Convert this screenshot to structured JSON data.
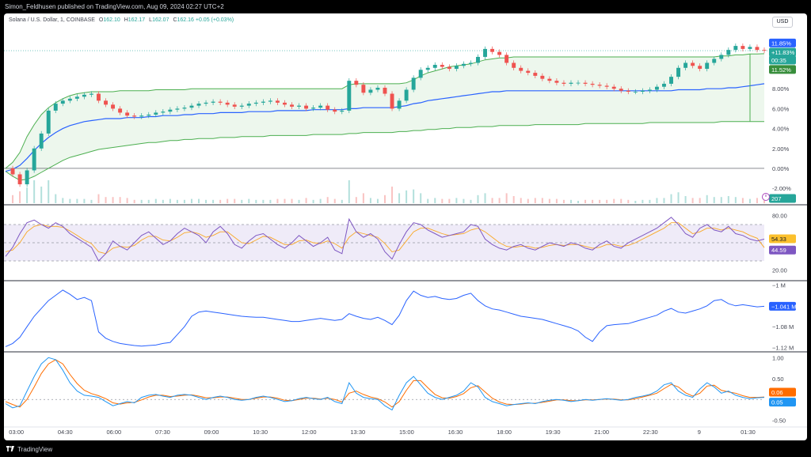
{
  "header": {
    "publisher_line": "Simon_Feldhusen published on TradingView.com, Aug 09, 2024 02:27 UTC+2"
  },
  "legend": {
    "symbol": "Solana / U.S. Dollar, 1, COINBASE",
    "o_label": "O",
    "o_value": "162.10",
    "h_label": "H",
    "h_value": "162.17",
    "l_label": "L",
    "l_value": "162.07",
    "c_label": "C",
    "c_value": "162.16",
    "change": "+0.05 (+0.03%)"
  },
  "currency_button": "USD",
  "footer": {
    "logo": "TradingView",
    "logo_icon": "tradingview-logo-icon"
  },
  "colors": {
    "band_green": "#4caf50",
    "band_fill": "#e8f5e9",
    "vwap_blue": "#2962ff",
    "up_candle": "#26a69a",
    "down_candle": "#ef5350",
    "rsi_purple": "#7e57c2",
    "rsi_ma_yellow": "#f9a825",
    "macd_blue": "#2196f3",
    "macd_orange": "#ff6d00",
    "dashed": "#9598a1"
  },
  "chart_data": [
    {
      "type": "line",
      "name": "price_pane",
      "ylim": [
        -3.5,
        13.5
      ],
      "y_unit": "percent",
      "ticks": [
        "8.00%",
        "6.00%",
        "4.00%",
        "2.00%",
        "0.00%",
        "-2.00%"
      ],
      "tick_values": [
        8,
        6,
        4,
        2,
        0,
        -2
      ],
      "x_ticks": [
        "03:00",
        "04:30",
        "06:00",
        "07:30",
        "09:00",
        "10:30",
        "12:00",
        "13:30",
        "15:00",
        "16:30",
        "18:00",
        "19:30",
        "21:00",
        "22:30",
        "9",
        "01:30"
      ],
      "x_tick_index": [
        2,
        11,
        20,
        29,
        38,
        47,
        56,
        65,
        74,
        83,
        92,
        101,
        110,
        119,
        128,
        137
      ],
      "labels": {
        "high_badge": "11.85%",
        "last_badge": "+11.83%",
        "countdown": "00:35",
        "band_badge": "11.52%",
        "volume_badge": "207"
      },
      "close": [
        0.0,
        -0.6,
        -1.6,
        -0.2,
        2.0,
        3.5,
        5.8,
        6.5,
        6.8,
        7.0,
        7.2,
        7.4,
        7.5,
        6.8,
        6.4,
        6.0,
        5.6,
        5.3,
        5.2,
        5.3,
        5.4,
        5.6,
        5.7,
        5.9,
        6.0,
        6.1,
        6.3,
        6.5,
        6.6,
        6.7,
        6.6,
        6.4,
        6.2,
        6.3,
        6.5,
        6.6,
        6.7,
        6.8,
        6.6,
        6.4,
        6.2,
        6.3,
        6.0,
        6.1,
        6.3,
        5.9,
        5.7,
        5.8,
        8.8,
        8.4,
        7.6,
        7.9,
        8.1,
        7.5,
        6.0,
        6.8,
        7.9,
        9.1,
        9.9,
        10.1,
        10.4,
        10.2,
        10.0,
        10.3,
        10.5,
        10.6,
        11.2,
        12.0,
        11.7,
        11.4,
        10.6,
        10.1,
        9.8,
        9.6,
        9.3,
        9.0,
        8.8,
        8.6,
        8.5,
        8.6,
        8.6,
        8.5,
        8.4,
        8.3,
        8.2,
        8.0,
        7.8,
        7.7,
        7.7,
        7.8,
        7.9,
        8.2,
        8.5,
        9.2,
        10.1,
        10.6,
        10.3,
        10.0,
        10.6,
        11.0,
        11.4,
        11.9,
        12.3,
        12.0,
        12.2,
        11.9,
        11.83
      ],
      "vwap": [
        -0.3,
        -0.1,
        0.3,
        1.0,
        1.8,
        2.5,
        3.1,
        3.6,
        4.0,
        4.3,
        4.5,
        4.7,
        4.8,
        4.9,
        5.0,
        5.0,
        5.0,
        5.1,
        5.1,
        5.1,
        5.2,
        5.2,
        5.3,
        5.3,
        5.3,
        5.4,
        5.4,
        5.5,
        5.5,
        5.5,
        5.6,
        5.6,
        5.6,
        5.6,
        5.7,
        5.7,
        5.7,
        5.7,
        5.8,
        5.8,
        5.8,
        5.8,
        5.8,
        5.9,
        5.9,
        5.9,
        5.9,
        5.9,
        6.0,
        6.0,
        6.1,
        6.1,
        6.1,
        6.1,
        6.1,
        6.2,
        6.3,
        6.5,
        6.6,
        6.8,
        6.9,
        7.0,
        7.1,
        7.2,
        7.3,
        7.4,
        7.5,
        7.6,
        7.7,
        7.7,
        7.8,
        7.8,
        7.8,
        7.8,
        7.8,
        7.8,
        7.8,
        7.8,
        7.8,
        7.8,
        7.8,
        7.8,
        7.8,
        7.8,
        7.8,
        7.8,
        7.8,
        7.8,
        7.8,
        7.8,
        7.8,
        7.8,
        7.8,
        7.8,
        7.9,
        7.9,
        7.9,
        7.9,
        8.0,
        8.0,
        8.0,
        8.1,
        8.1,
        8.2,
        8.3,
        8.4,
        8.5
      ],
      "band_upper": [
        0.0,
        0.6,
        1.6,
        3.2,
        4.4,
        5.4,
        6.1,
        6.6,
        7.0,
        7.3,
        7.5,
        7.6,
        7.7,
        7.7,
        7.7,
        7.7,
        7.8,
        7.8,
        7.8,
        7.8,
        7.8,
        7.9,
        7.9,
        7.9,
        7.9,
        7.9,
        8.0,
        8.0,
        8.0,
        8.0,
        8.0,
        8.0,
        8.0,
        8.0,
        8.0,
        8.0,
        8.0,
        8.0,
        8.0,
        8.0,
        8.0,
        8.0,
        8.0,
        8.0,
        8.0,
        8.0,
        8.0,
        8.0,
        8.4,
        8.5,
        8.5,
        8.5,
        8.5,
        8.5,
        8.5,
        8.5,
        8.6,
        8.9,
        9.3,
        9.6,
        9.8,
        10.0,
        10.2,
        10.3,
        10.4,
        10.5,
        10.7,
        10.9,
        11.0,
        11.1,
        11.1,
        11.2,
        11.2,
        11.2,
        11.2,
        11.2,
        11.2,
        11.2,
        11.2,
        11.2,
        11.2,
        11.2,
        11.2,
        11.2,
        11.2,
        11.2,
        11.2,
        11.2,
        11.2,
        11.2,
        11.2,
        11.2,
        11.2,
        11.2,
        11.2,
        11.2,
        11.2,
        11.2,
        11.2,
        11.2,
        11.3,
        11.3,
        11.4,
        11.4,
        11.5,
        11.5,
        11.52
      ],
      "band_lower": [
        -0.3,
        -0.8,
        -1.2,
        -1.1,
        -0.8,
        -0.4,
        0.0,
        0.4,
        0.8,
        1.1,
        1.3,
        1.5,
        1.7,
        1.9,
        2.0,
        2.1,
        2.2,
        2.3,
        2.4,
        2.5,
        2.6,
        2.6,
        2.7,
        2.8,
        2.8,
        2.9,
        2.9,
        3.0,
        3.0,
        3.0,
        3.1,
        3.1,
        3.1,
        3.2,
        3.2,
        3.2,
        3.2,
        3.3,
        3.3,
        3.3,
        3.3,
        3.3,
        3.3,
        3.4,
        3.4,
        3.4,
        3.4,
        3.4,
        3.5,
        3.5,
        3.6,
        3.6,
        3.6,
        3.6,
        3.6,
        3.7,
        3.7,
        3.8,
        3.8,
        3.9,
        3.9,
        4.0,
        4.0,
        4.1,
        4.1,
        4.1,
        4.2,
        4.2,
        4.2,
        4.3,
        4.3,
        4.3,
        4.3,
        4.3,
        4.4,
        4.4,
        4.4,
        4.4,
        4.4,
        4.4,
        4.4,
        4.5,
        4.5,
        4.5,
        4.5,
        4.5,
        4.5,
        4.5,
        4.5,
        4.5,
        4.6,
        4.6,
        4.6,
        4.6,
        4.6,
        4.6,
        4.6,
        4.6,
        4.6,
        4.6,
        4.7,
        4.7,
        4.7,
        4.7,
        4.7,
        4.7,
        4.7
      ]
    },
    {
      "type": "line",
      "name": "rsi_pane",
      "ylim": [
        10,
        90
      ],
      "ticks": [
        "80.00",
        "20.00"
      ],
      "tick_values": [
        80,
        20
      ],
      "band": [
        30,
        70
      ],
      "labels": {
        "rsi_badge": "54.33",
        "ma_badge": "44.59"
      },
      "rsi": [
        35,
        45,
        60,
        72,
        75,
        70,
        66,
        72,
        68,
        60,
        55,
        50,
        45,
        30,
        38,
        52,
        46,
        42,
        50,
        58,
        62,
        55,
        48,
        52,
        60,
        66,
        62,
        58,
        50,
        62,
        68,
        60,
        48,
        44,
        52,
        58,
        60,
        54,
        48,
        44,
        50,
        58,
        52,
        46,
        50,
        56,
        42,
        38,
        76,
        62,
        56,
        60,
        54,
        40,
        32,
        48,
        62,
        72,
        70,
        64,
        60,
        56,
        58,
        60,
        62,
        70,
        68,
        54,
        48,
        44,
        42,
        46,
        48,
        44,
        42,
        46,
        50,
        48,
        46,
        50,
        48,
        44,
        42,
        48,
        52,
        46,
        44,
        50,
        54,
        58,
        62,
        66,
        72,
        78,
        70,
        60,
        56,
        66,
        70,
        64,
        62,
        68,
        60,
        58,
        54,
        52,
        54
      ],
      "rsi_ma": [
        40,
        42,
        50,
        62,
        68,
        70,
        68,
        68,
        67,
        63,
        58,
        53,
        49,
        40,
        38,
        44,
        46,
        45,
        47,
        53,
        57,
        57,
        53,
        52,
        56,
        61,
        62,
        60,
        56,
        58,
        62,
        62,
        56,
        50,
        49,
        53,
        57,
        56,
        52,
        48,
        48,
        52,
        53,
        50,
        49,
        52,
        49,
        44,
        56,
        62,
        60,
        58,
        56,
        49,
        40,
        42,
        52,
        62,
        66,
        66,
        63,
        60,
        58,
        59,
        60,
        64,
        66,
        62,
        56,
        50,
        46,
        45,
        46,
        46,
        44,
        45,
        47,
        48,
        47,
        48,
        48,
        46,
        44,
        45,
        48,
        48,
        46,
        47,
        50,
        54,
        58,
        62,
        66,
        72,
        72,
        66,
        60,
        62,
        66,
        66,
        64,
        66,
        64,
        62,
        58,
        55,
        44.59
      ]
    },
    {
      "type": "line",
      "name": "cumulative_pane",
      "ylim": [
        -1.125,
        -0.995
      ],
      "ticks": [
        "−1 M",
        "−1.08 M",
        "−1.12 M"
      ],
      "tick_values": [
        -1.0,
        -1.08,
        -1.12
      ],
      "labels": {
        "value_badge": "−1.041 M"
      },
      "values": [
        -1.118,
        -1.112,
        -1.1,
        -1.08,
        -1.06,
        -1.045,
        -1.03,
        -1.02,
        -1.01,
        -1.018,
        -1.028,
        -1.024,
        -1.03,
        -1.09,
        -1.102,
        -1.108,
        -1.112,
        -1.114,
        -1.116,
        -1.117,
        -1.116,
        -1.115,
        -1.112,
        -1.11,
        -1.095,
        -1.08,
        -1.06,
        -1.052,
        -1.05,
        -1.052,
        -1.054,
        -1.056,
        -1.058,
        -1.06,
        -1.061,
        -1.062,
        -1.062,
        -1.064,
        -1.066,
        -1.068,
        -1.07,
        -1.07,
        -1.068,
        -1.066,
        -1.064,
        -1.066,
        -1.068,
        -1.066,
        -1.055,
        -1.06,
        -1.064,
        -1.066,
        -1.062,
        -1.068,
        -1.076,
        -1.058,
        -1.03,
        -1.012,
        -1.02,
        -1.024,
        -1.022,
        -1.026,
        -1.028,
        -1.026,
        -1.02,
        -1.016,
        -1.03,
        -1.04,
        -1.046,
        -1.048,
        -1.052,
        -1.056,
        -1.06,
        -1.062,
        -1.064,
        -1.066,
        -1.07,
        -1.074,
        -1.078,
        -1.082,
        -1.088,
        -1.1,
        -1.108,
        -1.09,
        -1.078,
        -1.076,
        -1.075,
        -1.074,
        -1.07,
        -1.066,
        -1.062,
        -1.058,
        -1.05,
        -1.045,
        -1.052,
        -1.054,
        -1.05,
        -1.046,
        -1.04,
        -1.03,
        -1.028,
        -1.036,
        -1.04,
        -1.038,
        -1.04,
        -1.042,
        -1.041
      ]
    },
    {
      "type": "line",
      "name": "oscillator_pane",
      "ylim": [
        -0.6,
        1.1
      ],
      "ticks": [
        "1.00",
        "0.50",
        "-0.50"
      ],
      "tick_values": [
        1.0,
        0.5,
        -0.5
      ],
      "labels": {
        "orange_badge": "0.06",
        "blue_badge": "0.05"
      },
      "fast": [
        -0.1,
        -0.2,
        -0.15,
        0.2,
        0.55,
        0.85,
        1.0,
        0.95,
        0.7,
        0.4,
        0.2,
        0.1,
        0.08,
        0.05,
        -0.05,
        -0.15,
        -0.1,
        -0.05,
        -0.08,
        0.05,
        0.1,
        0.12,
        0.08,
        0.05,
        0.1,
        0.12,
        0.1,
        0.05,
        0.0,
        0.05,
        0.08,
        0.05,
        0.0,
        -0.02,
        0.0,
        0.05,
        0.08,
        0.05,
        0.0,
        -0.05,
        -0.03,
        0.02,
        0.05,
        0.02,
        0.0,
        0.05,
        -0.05,
        -0.1,
        0.4,
        0.15,
        0.05,
        0.02,
        0.0,
        -0.15,
        -0.25,
        0.1,
        0.4,
        0.55,
        0.35,
        0.15,
        0.05,
        0.0,
        0.05,
        0.1,
        0.2,
        0.4,
        0.3,
        0.05,
        -0.05,
        -0.1,
        -0.15,
        -0.12,
        -0.1,
        -0.08,
        -0.1,
        -0.05,
        -0.02,
        0.0,
        -0.02,
        -0.05,
        -0.03,
        0.0,
        -0.02,
        0.0,
        0.02,
        0.0,
        -0.02,
        0.0,
        0.05,
        0.08,
        0.12,
        0.2,
        0.35,
        0.4,
        0.2,
        0.1,
        0.05,
        0.25,
        0.4,
        0.3,
        0.15,
        0.2,
        0.1,
        0.05,
        0.02,
        0.04,
        0.05
      ],
      "slow": [
        -0.05,
        -0.12,
        -0.18,
        0.0,
        0.3,
        0.62,
        0.85,
        0.95,
        0.85,
        0.6,
        0.38,
        0.22,
        0.14,
        0.09,
        0.02,
        -0.08,
        -0.11,
        -0.08,
        -0.07,
        -0.01,
        0.06,
        0.1,
        0.1,
        0.07,
        0.08,
        0.1,
        0.11,
        0.08,
        0.04,
        0.04,
        0.06,
        0.06,
        0.03,
        0.0,
        0.0,
        0.03,
        0.06,
        0.06,
        0.03,
        -0.02,
        -0.03,
        0.0,
        0.03,
        0.03,
        0.01,
        0.03,
        0.0,
        -0.06,
        0.15,
        0.2,
        0.12,
        0.06,
        0.02,
        -0.06,
        -0.18,
        -0.05,
        0.22,
        0.45,
        0.45,
        0.28,
        0.12,
        0.04,
        0.03,
        0.07,
        0.14,
        0.28,
        0.33,
        0.18,
        0.03,
        -0.06,
        -0.11,
        -0.12,
        -0.11,
        -0.09,
        -0.09,
        -0.07,
        -0.04,
        -0.01,
        -0.01,
        -0.03,
        -0.03,
        -0.01,
        -0.01,
        0.0,
        0.01,
        0.01,
        -0.01,
        -0.01,
        0.02,
        0.06,
        0.1,
        0.15,
        0.26,
        0.36,
        0.3,
        0.16,
        0.08,
        0.15,
        0.32,
        0.34,
        0.22,
        0.18,
        0.15,
        0.09,
        0.05,
        0.05,
        0.06
      ]
    }
  ]
}
